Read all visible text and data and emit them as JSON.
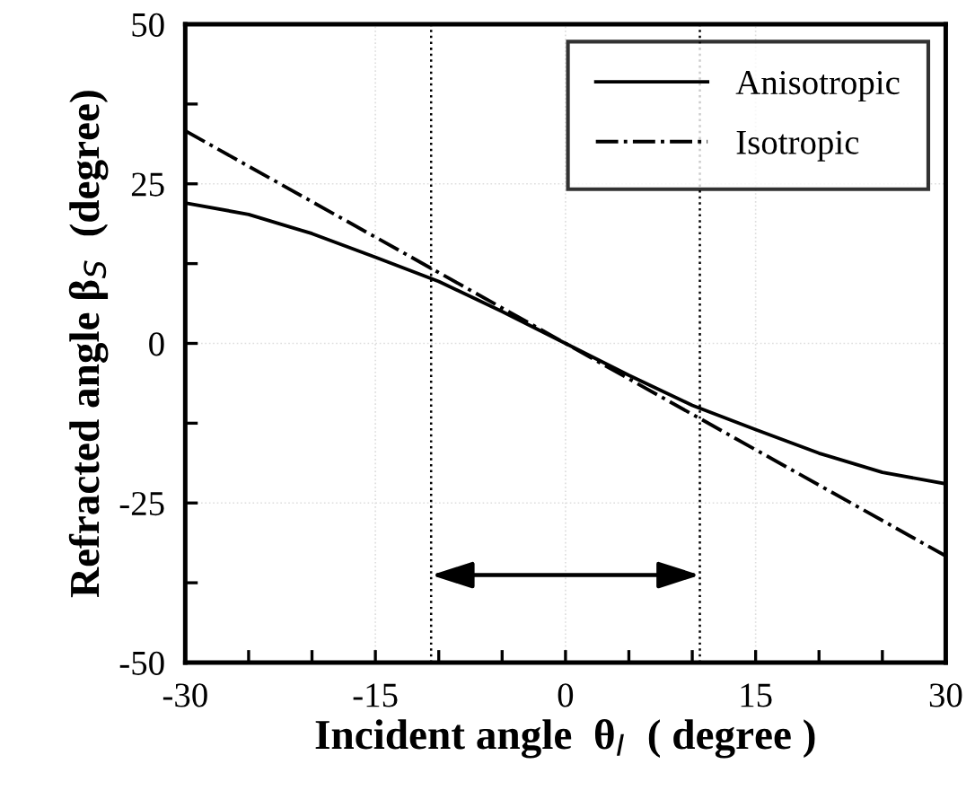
{
  "chart_data": {
    "type": "line",
    "xlabel": "Incident angle  θ$_{I}$  ( degree )",
    "ylabel": "Refracted angle β$_{S}$  (degree)",
    "xlim": [
      -30,
      30
    ],
    "ylim": [
      -50,
      50
    ],
    "xticks": [
      -30,
      {
        "value": -25,
        "label": null
      },
      {
        "value": -20,
        "label": null
      },
      -15,
      {
        "value": -10,
        "label": null
      },
      {
        "value": -5,
        "label": null
      },
      0,
      {
        "value": 5,
        "label": null
      },
      {
        "value": 10,
        "label": null
      },
      15,
      {
        "value": 20,
        "label": null
      },
      {
        "value": 25,
        "label": null
      },
      30
    ],
    "yticks": [
      -50,
      {
        "value": -37.5,
        "label": null
      },
      -25,
      {
        "value": -12.5,
        "label": null
      },
      0,
      {
        "value": 12.5,
        "label": null
      },
      25,
      {
        "value": 37.5,
        "label": null
      },
      50
    ],
    "grid": true,
    "legend": "top right",
    "series": [
      {
        "name": "Anisotropic",
        "color": "#000000",
        "line_style": "solid",
        "x": [
          -30,
          -25,
          -20,
          -15,
          -10,
          -5,
          0,
          5,
          10,
          15,
          20,
          25,
          30
        ],
        "values": [
          22,
          20.2,
          17.2,
          13.5,
          9.7,
          5,
          0,
          -5,
          -9.7,
          -13.5,
          -17.2,
          -20.2,
          -22
        ]
      },
      {
        "name": "Isotropic",
        "color": "#000000",
        "line_style": "dashdot",
        "x": [
          -30,
          30
        ],
        "values": [
          33.3,
          -33.3
        ]
      }
    ],
    "ref_lines": [
      {
        "axis": "x",
        "value": -10.6,
        "line_style": "dotted",
        "color": "#000000"
      },
      {
        "axis": "x",
        "value": 10.6,
        "line_style": "dotted",
        "color": "#000000"
      }
    ]
  }
}
